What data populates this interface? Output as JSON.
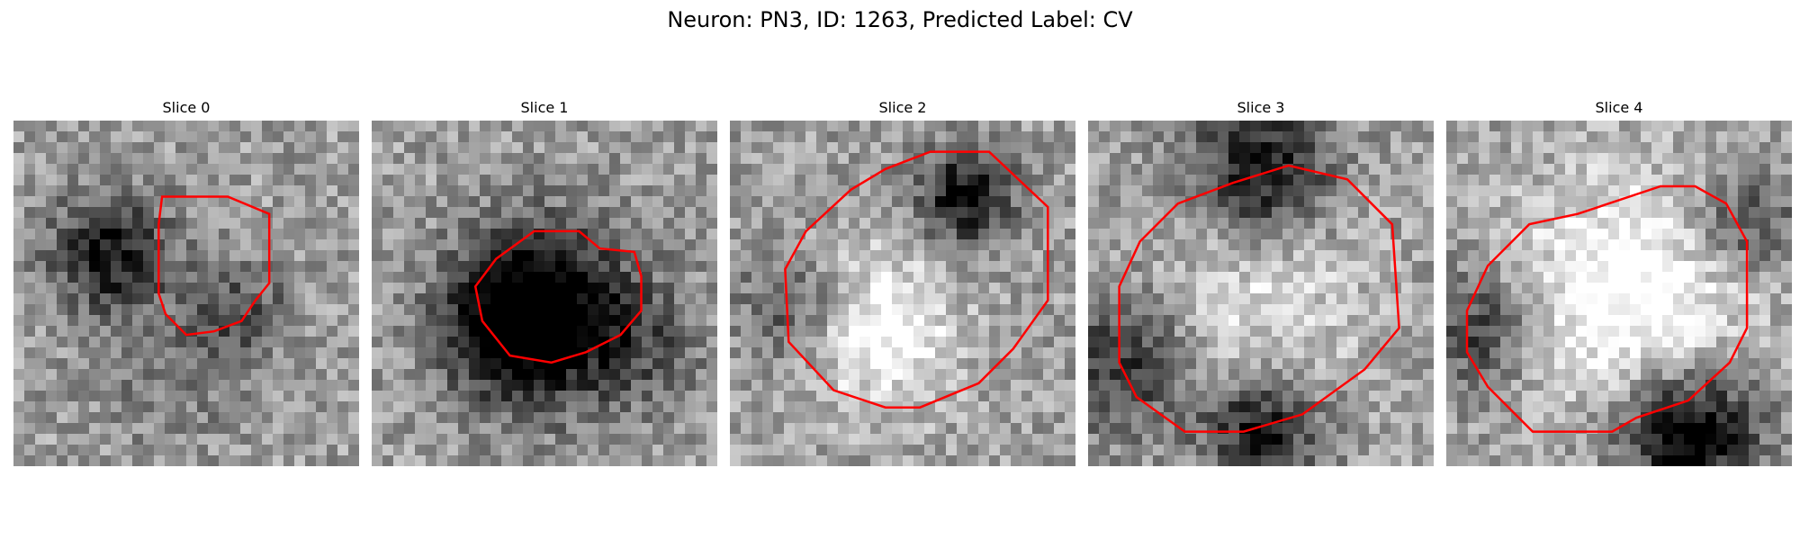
{
  "figure": {
    "title": "Neuron: PN3, ID: 1263, Predicted Label: CV",
    "contour_color": "#ff0000",
    "panels": [
      {
        "title": "Slice 0",
        "seed": 11,
        "blobs": [
          {
            "u": 0.28,
            "v": 0.38,
            "r": 0.12,
            "a": -0.55
          },
          {
            "u": 0.66,
            "v": 0.55,
            "r": 0.1,
            "a": -0.3
          },
          {
            "u": 0.45,
            "v": 0.72,
            "r": 0.16,
            "a": -0.15
          }
        ],
        "contour_uv": [
          [
            0.43,
            0.22
          ],
          [
            0.62,
            0.22
          ],
          [
            0.74,
            0.27
          ],
          [
            0.74,
            0.47
          ],
          [
            0.7,
            0.52
          ],
          [
            0.66,
            0.58
          ],
          [
            0.58,
            0.61
          ],
          [
            0.5,
            0.62
          ],
          [
            0.44,
            0.56
          ],
          [
            0.42,
            0.5
          ],
          [
            0.42,
            0.3
          ]
        ]
      },
      {
        "title": "Slice 1",
        "seed": 23,
        "blobs": [
          {
            "u": 0.5,
            "v": 0.56,
            "r": 0.18,
            "a": -0.75
          },
          {
            "u": 0.38,
            "v": 0.6,
            "r": 0.12,
            "a": -0.35
          },
          {
            "u": 0.8,
            "v": 0.65,
            "r": 0.12,
            "a": -0.2
          }
        ],
        "contour_uv": [
          [
            0.47,
            0.32
          ],
          [
            0.6,
            0.32
          ],
          [
            0.66,
            0.37
          ],
          [
            0.76,
            0.38
          ],
          [
            0.78,
            0.45
          ],
          [
            0.78,
            0.55
          ],
          [
            0.72,
            0.62
          ],
          [
            0.62,
            0.67
          ],
          [
            0.52,
            0.7
          ],
          [
            0.4,
            0.68
          ],
          [
            0.32,
            0.58
          ],
          [
            0.3,
            0.48
          ],
          [
            0.36,
            0.4
          ]
        ]
      },
      {
        "title": "Slice 2",
        "seed": 37,
        "blobs": [
          {
            "u": 0.68,
            "v": 0.22,
            "r": 0.1,
            "a": -0.6
          },
          {
            "u": 0.42,
            "v": 0.6,
            "r": 0.16,
            "a": 0.45
          },
          {
            "u": 0.2,
            "v": 0.55,
            "r": 0.12,
            "a": -0.35
          }
        ],
        "contour_uv": [
          [
            0.58,
            0.09
          ],
          [
            0.75,
            0.09
          ],
          [
            0.92,
            0.25
          ],
          [
            0.92,
            0.52
          ],
          [
            0.82,
            0.66
          ],
          [
            0.72,
            0.76
          ],
          [
            0.55,
            0.83
          ],
          [
            0.45,
            0.83
          ],
          [
            0.3,
            0.78
          ],
          [
            0.17,
            0.64
          ],
          [
            0.16,
            0.43
          ],
          [
            0.22,
            0.32
          ],
          [
            0.35,
            0.2
          ],
          [
            0.45,
            0.14
          ]
        ]
      },
      {
        "title": "Slice 3",
        "seed": 49,
        "blobs": [
          {
            "u": 0.5,
            "v": 0.15,
            "r": 0.14,
            "a": -0.6
          },
          {
            "u": 0.1,
            "v": 0.7,
            "r": 0.14,
            "a": -0.45
          },
          {
            "u": 0.5,
            "v": 0.9,
            "r": 0.12,
            "a": -0.55
          },
          {
            "u": 0.5,
            "v": 0.52,
            "r": 0.22,
            "a": 0.25
          }
        ],
        "contour_uv": [
          [
            0.42,
            0.18
          ],
          [
            0.58,
            0.13
          ],
          [
            0.75,
            0.17
          ],
          [
            0.88,
            0.3
          ],
          [
            0.9,
            0.6
          ],
          [
            0.8,
            0.72
          ],
          [
            0.62,
            0.85
          ],
          [
            0.45,
            0.9
          ],
          [
            0.28,
            0.9
          ],
          [
            0.14,
            0.8
          ],
          [
            0.09,
            0.7
          ],
          [
            0.09,
            0.48
          ],
          [
            0.15,
            0.35
          ],
          [
            0.26,
            0.24
          ]
        ]
      },
      {
        "title": "Slice 4",
        "seed": 61,
        "blobs": [
          {
            "u": 0.55,
            "v": 0.5,
            "r": 0.24,
            "a": 0.5
          },
          {
            "u": 0.7,
            "v": 0.9,
            "r": 0.14,
            "a": -0.75
          },
          {
            "u": 0.1,
            "v": 0.6,
            "r": 0.12,
            "a": -0.4
          },
          {
            "u": 0.85,
            "v": 0.3,
            "r": 0.12,
            "a": -0.4
          }
        ],
        "contour_uv": [
          [
            0.38,
            0.27
          ],
          [
            0.62,
            0.19
          ],
          [
            0.72,
            0.19
          ],
          [
            0.81,
            0.24
          ],
          [
            0.87,
            0.35
          ],
          [
            0.87,
            0.6
          ],
          [
            0.82,
            0.7
          ],
          [
            0.7,
            0.81
          ],
          [
            0.55,
            0.86
          ],
          [
            0.48,
            0.9
          ],
          [
            0.25,
            0.9
          ],
          [
            0.12,
            0.77
          ],
          [
            0.06,
            0.67
          ],
          [
            0.06,
            0.55
          ],
          [
            0.12,
            0.42
          ],
          [
            0.24,
            0.3
          ]
        ]
      }
    ]
  }
}
